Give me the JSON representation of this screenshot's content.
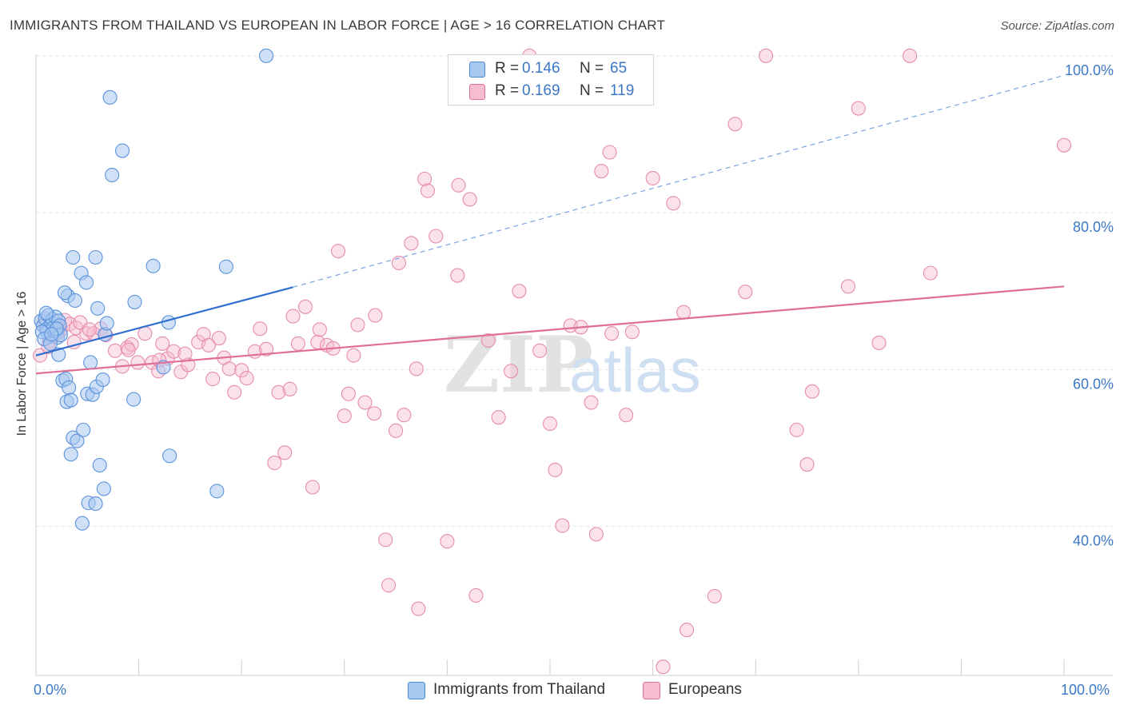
{
  "title": "IMMIGRANTS FROM THAILAND VS EUROPEAN IN LABOR FORCE | AGE > 16 CORRELATION CHART",
  "source": "Source: ZipAtlas.com",
  "colors": {
    "blue": "#4a86d8",
    "blue_fill": "#a9c8f0",
    "pink": "#e0709a",
    "pink_fill": "#f6bdd0",
    "axis_text": "#3b78c7"
  },
  "legend": {
    "row1": {
      "r_label": "R =",
      "r_value": "0.146",
      "n_label": "N =",
      "n_value": "65"
    },
    "row2": {
      "r_label": "R =",
      "r_value": "0.169",
      "n_label": "N =",
      "n_value": "119"
    }
  },
  "bottom_legend": {
    "series1": "Immigrants from Thailand",
    "series2": "Europeans"
  },
  "x_corner": {
    "left": "0.0%",
    "right": "100.0%"
  },
  "chart_data": {
    "type": "scatter",
    "title": "IMMIGRANTS FROM THAILAND VS EUROPEAN IN LABOR FORCE | AGE > 16 CORRELATION CHART",
    "xlabel": "",
    "ylabel": "In Labor Force | Age > 16",
    "xlim": [
      0,
      100
    ],
    "ylim": [
      21,
      101
    ],
    "y_ticks": [
      40,
      60,
      80,
      100
    ],
    "y_tick_labels": [
      "40.0%",
      "60.0%",
      "80.0%",
      "100.0%"
    ],
    "grid": true,
    "watermark": "ZIPatlas",
    "series": [
      {
        "name": "Immigrants from Thailand",
        "R": 0.146,
        "N": 65,
        "trend": {
          "x": [
            0,
            25
          ],
          "y": [
            61.8,
            70.5
          ],
          "extended_to": [
            100,
            97.5
          ]
        },
        "points": [
          [
            0.5,
            66.2
          ],
          [
            0.7,
            65.6
          ],
          [
            0.9,
            66.5
          ],
          [
            1.0,
            65.1
          ],
          [
            1.1,
            64.8
          ],
          [
            1.2,
            66.9
          ],
          [
            1.3,
            64.2
          ],
          [
            1.5,
            65.9
          ],
          [
            1.6,
            66.4
          ],
          [
            1.7,
            65.3
          ],
          [
            1.8,
            64.6
          ],
          [
            1.9,
            66.7
          ],
          [
            2.0,
            65.0
          ],
          [
            2.1,
            64.1
          ],
          [
            2.2,
            66.2
          ],
          [
            2.3,
            65.6
          ],
          [
            2.4,
            64.4
          ],
          [
            0.6,
            64.8
          ],
          [
            0.8,
            63.9
          ],
          [
            1.4,
            63.3
          ],
          [
            2.2,
            61.9
          ],
          [
            2.6,
            58.6
          ],
          [
            2.9,
            58.8
          ],
          [
            3.0,
            55.9
          ],
          [
            3.2,
            57.7
          ],
          [
            3.4,
            56.1
          ],
          [
            3.6,
            51.3
          ],
          [
            4.0,
            50.9
          ],
          [
            3.4,
            49.2
          ],
          [
            4.6,
            52.3
          ],
          [
            5.0,
            56.9
          ],
          [
            5.5,
            56.8
          ],
          [
            5.3,
            60.9
          ],
          [
            5.9,
            57.8
          ],
          [
            6.5,
            58.7
          ],
          [
            6.2,
            47.8
          ],
          [
            5.1,
            43.0
          ],
          [
            5.8,
            42.9
          ],
          [
            4.5,
            40.4
          ],
          [
            6.6,
            44.8
          ],
          [
            3.1,
            69.4
          ],
          [
            2.8,
            69.8
          ],
          [
            3.8,
            68.8
          ],
          [
            4.4,
            72.3
          ],
          [
            4.9,
            71.1
          ],
          [
            3.6,
            74.3
          ],
          [
            5.8,
            74.3
          ],
          [
            6.0,
            67.8
          ],
          [
            6.7,
            64.5
          ],
          [
            6.9,
            65.9
          ],
          [
            7.2,
            94.7
          ],
          [
            8.4,
            87.9
          ],
          [
            7.4,
            84.8
          ],
          [
            9.5,
            56.2
          ],
          [
            9.6,
            68.6
          ],
          [
            11.4,
            73.2
          ],
          [
            12.9,
            66.0
          ],
          [
            12.4,
            60.3
          ],
          [
            13.0,
            49.0
          ],
          [
            17.6,
            44.5
          ],
          [
            18.5,
            73.1
          ],
          [
            22.4,
            100.0
          ],
          [
            1.0,
            67.2
          ],
          [
            2.0,
            65.2
          ],
          [
            1.5,
            64.5
          ]
        ]
      },
      {
        "name": "Europeans",
        "R": 0.169,
        "N": 119,
        "trend": {
          "x": [
            0,
            100
          ],
          "y": [
            59.5,
            70.6
          ]
        },
        "points": [
          [
            0.4,
            61.8
          ],
          [
            0.9,
            66.0
          ],
          [
            1.3,
            63.6
          ],
          [
            1.6,
            64.3
          ],
          [
            2.0,
            65.7
          ],
          [
            2.4,
            65.0
          ],
          [
            2.8,
            66.3
          ],
          [
            3.3,
            65.8
          ],
          [
            3.9,
            65.3
          ],
          [
            4.3,
            66.0
          ],
          [
            4.9,
            64.6
          ],
          [
            5.6,
            64.6
          ],
          [
            6.3,
            65.2
          ],
          [
            6.8,
            64.4
          ],
          [
            7.7,
            62.4
          ],
          [
            8.4,
            60.4
          ],
          [
            8.9,
            62.8
          ],
          [
            9.3,
            63.2
          ],
          [
            9.9,
            60.9
          ],
          [
            10.6,
            64.6
          ],
          [
            11.3,
            60.9
          ],
          [
            11.9,
            59.8
          ],
          [
            12.3,
            63.3
          ],
          [
            12.8,
            61.4
          ],
          [
            13.4,
            62.3
          ],
          [
            14.1,
            59.7
          ],
          [
            14.8,
            60.6
          ],
          [
            15.8,
            63.5
          ],
          [
            16.3,
            64.5
          ],
          [
            16.8,
            63.1
          ],
          [
            17.2,
            58.8
          ],
          [
            17.8,
            64.0
          ],
          [
            18.3,
            61.5
          ],
          [
            18.8,
            60.1
          ],
          [
            19.3,
            57.1
          ],
          [
            20.0,
            59.9
          ],
          [
            20.5,
            58.9
          ],
          [
            21.3,
            62.3
          ],
          [
            21.8,
            65.2
          ],
          [
            22.4,
            62.6
          ],
          [
            23.2,
            48.1
          ],
          [
            23.6,
            57.1
          ],
          [
            24.2,
            49.4
          ],
          [
            24.7,
            57.5
          ],
          [
            25.0,
            66.8
          ],
          [
            25.5,
            63.3
          ],
          [
            26.2,
            68.0
          ],
          [
            26.9,
            45.0
          ],
          [
            27.4,
            63.5
          ],
          [
            27.6,
            65.1
          ],
          [
            28.3,
            63.1
          ],
          [
            28.9,
            62.7
          ],
          [
            29.4,
            75.1
          ],
          [
            30.0,
            54.1
          ],
          [
            30.4,
            56.9
          ],
          [
            30.9,
            61.8
          ],
          [
            31.3,
            65.7
          ],
          [
            32.0,
            55.8
          ],
          [
            32.9,
            54.4
          ],
          [
            33.0,
            66.9
          ],
          [
            34.0,
            38.3
          ],
          [
            34.3,
            32.5
          ],
          [
            35.0,
            52.2
          ],
          [
            35.3,
            73.6
          ],
          [
            35.8,
            54.2
          ],
          [
            36.5,
            76.1
          ],
          [
            37.0,
            60.1
          ],
          [
            37.2,
            29.5
          ],
          [
            37.8,
            84.3
          ],
          [
            38.1,
            82.8
          ],
          [
            38.9,
            77.0
          ],
          [
            40.0,
            38.1
          ],
          [
            41.0,
            72.0
          ],
          [
            41.1,
            83.5
          ],
          [
            42.2,
            81.7
          ],
          [
            42.8,
            31.2
          ],
          [
            44.0,
            63.7
          ],
          [
            45.0,
            53.9
          ],
          [
            46.2,
            59.8
          ],
          [
            47.0,
            70.0
          ],
          [
            48.0,
            100.0
          ],
          [
            49.0,
            62.4
          ],
          [
            50.0,
            53.1
          ],
          [
            50.5,
            47.2
          ],
          [
            51.2,
            40.1
          ],
          [
            52.0,
            65.6
          ],
          [
            53.0,
            65.4
          ],
          [
            54.0,
            55.8
          ],
          [
            54.5,
            39.0
          ],
          [
            55.0,
            85.3
          ],
          [
            55.8,
            87.7
          ],
          [
            56.0,
            64.6
          ],
          [
            57.4,
            54.2
          ],
          [
            58.0,
            64.8
          ],
          [
            60.0,
            84.4
          ],
          [
            61.0,
            22.1
          ],
          [
            62.0,
            81.2
          ],
          [
            63.0,
            67.3
          ],
          [
            63.3,
            26.8
          ],
          [
            66.0,
            31.1
          ],
          [
            68.0,
            91.3
          ],
          [
            69.0,
            69.9
          ],
          [
            71.0,
            100.0
          ],
          [
            74.0,
            52.3
          ],
          [
            75.0,
            47.9
          ],
          [
            75.5,
            57.2
          ],
          [
            79.0,
            70.6
          ],
          [
            80.0,
            93.3
          ],
          [
            82.0,
            63.4
          ],
          [
            85.0,
            100.0
          ],
          [
            87.0,
            72.3
          ],
          [
            100.0,
            88.6
          ],
          [
            1.2,
            62.9
          ],
          [
            2.1,
            64.7
          ],
          [
            3.7,
            63.5
          ],
          [
            5.2,
            65.1
          ],
          [
            9.0,
            62.5
          ],
          [
            12.0,
            61.2
          ],
          [
            14.5,
            62.0
          ]
        ]
      }
    ]
  }
}
